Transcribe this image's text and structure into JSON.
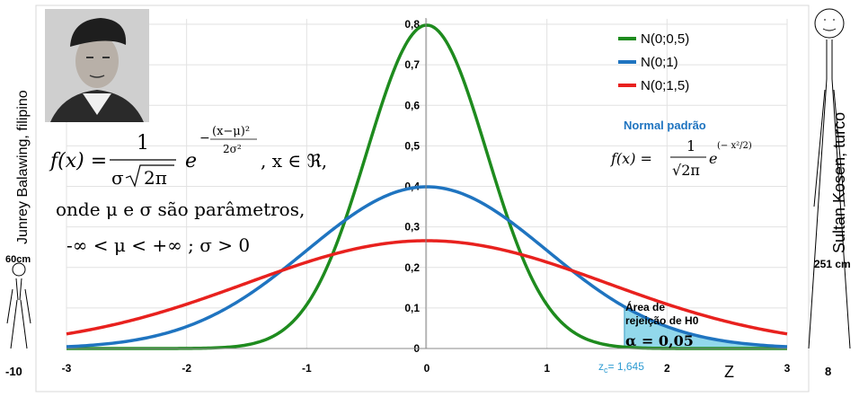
{
  "chart_data": {
    "type": "line",
    "x_range": [
      -3,
      3
    ],
    "ylim": [
      0,
      0.8
    ],
    "x_ticks": [
      "-3",
      "-2",
      "-1",
      "0",
      "1",
      "2",
      "3"
    ],
    "y_ticks": [
      "0",
      "0,1",
      "0,2",
      "0,3",
      "0,4",
      "0,5",
      "0,6",
      "0,7",
      "0,8"
    ],
    "xlabel": "Z",
    "grid": true,
    "legend_position": "top-right",
    "series": [
      {
        "name": "N(0;0,5)",
        "mu": 0,
        "sigma": 0.5,
        "color": "#1e8b1e"
      },
      {
        "name": "N(0;1)",
        "mu": 0,
        "sigma": 1,
        "color": "#1f74c0"
      },
      {
        "name": "N(0;1,5)",
        "mu": 0,
        "sigma": 1.5,
        "color": "#e8211e"
      }
    ],
    "rejection_region": {
      "from": 1.645,
      "to": 3,
      "color": "#7fd1e8"
    },
    "annotations": {
      "area_label_line1": "Área de",
      "area_label_line2": "rejeição de H0",
      "alpha_label": "α = 0,05",
      "zc_label": "z",
      "zc_sub": "c",
      "zc_value": "= 1,645"
    }
  },
  "formula": {
    "fx": "f(x) =",
    "numerator": "1",
    "denominator_sigma": "σ",
    "denominator_root": "2π",
    "exponent_base": "e",
    "exponent_num": "(x−μ)²",
    "exponent_den": "2σ²",
    "domain": ", x ∈ ℜ,",
    "params_line": "onde μ e σ são parâmetros,",
    "constraints_line": "-∞ < μ < +∞  ;  σ > 0"
  },
  "standard_normal": {
    "title": "Normal padrão",
    "fx": "f(x) =",
    "numerator": "1",
    "denominator": "√2π",
    "exponent_base": "e",
    "exponent": "(− x²/2)"
  },
  "left_person": {
    "name": "Junrey Balawing, filipino",
    "height": "60cm",
    "scale_label": "-10"
  },
  "right_person": {
    "name": "Sultan Kosen, turco",
    "height": "251 cm",
    "scale_label": "8"
  },
  "colors": {
    "green": "#1e8b1e",
    "blue": "#1f74c0",
    "red": "#e8211e",
    "portrait_bg": "#cfcfcf"
  }
}
